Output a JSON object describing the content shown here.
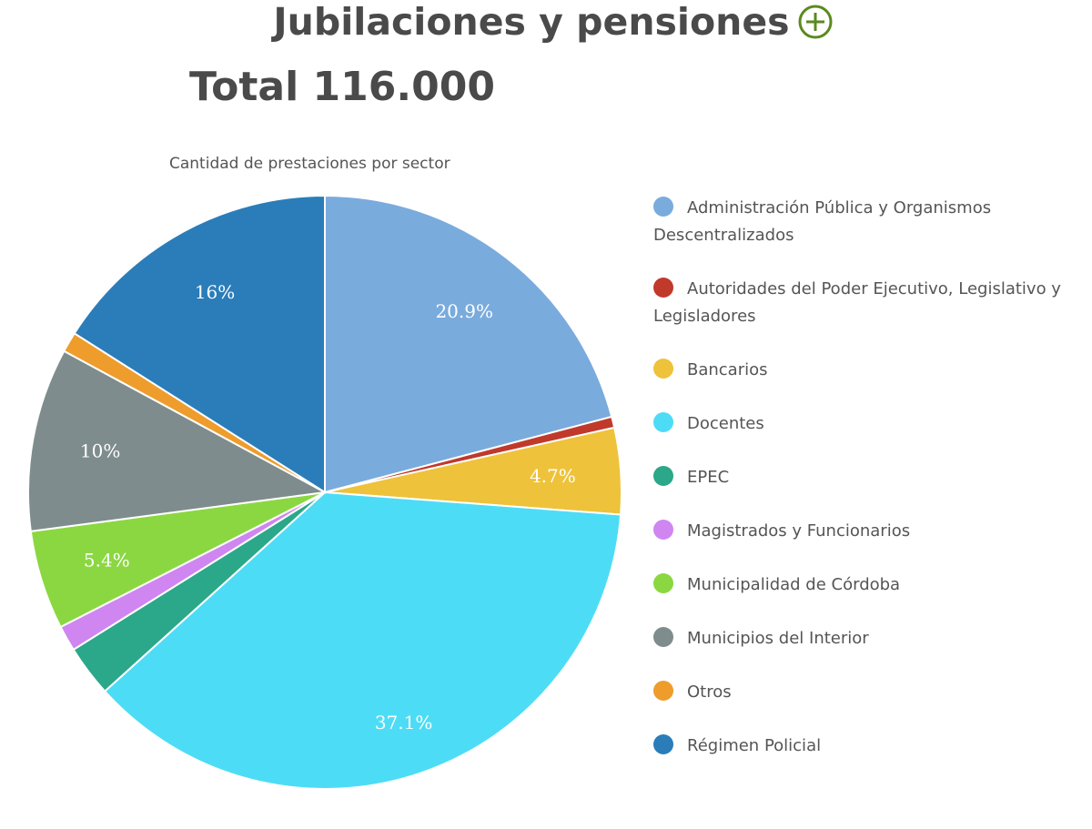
{
  "header": {
    "title": "Jubilaciones y pensiones",
    "expand_icon": "plus-circle-icon",
    "accent_color": "#5a8a1e"
  },
  "total": {
    "label": "Total 116.000"
  },
  "chart_data": {
    "type": "pie",
    "title": "Cantidad de prestaciones por sector",
    "unit": "%",
    "legend_position": "right",
    "slices": [
      {
        "name": "Administración Pública y Organismos Descentralizados",
        "value": 20.9,
        "color": "#7aabdd",
        "label": "20.9%"
      },
      {
        "name": "Autoridades del Poder Ejecutivo, Legislativo y Legisladores",
        "value": 0.6,
        "color": "#c0392b",
        "label": ""
      },
      {
        "name": "Bancarios",
        "value": 4.7,
        "color": "#eec23a",
        "label": "4.7%"
      },
      {
        "name": "Docentes",
        "value": 37.1,
        "color": "#4ddcf6",
        "label": "37.1%"
      },
      {
        "name": "EPEC",
        "value": 2.8,
        "color": "#2aa889",
        "label": ""
      },
      {
        "name": "Magistrados y Funcionarios",
        "value": 1.4,
        "color": "#cf86f0",
        "label": ""
      },
      {
        "name": "Municipalidad de Córdoba",
        "value": 5.4,
        "color": "#8bd742",
        "label": "5.4%"
      },
      {
        "name": "Municipios del Interior",
        "value": 10.0,
        "color": "#7f8c8d",
        "label": "10%"
      },
      {
        "name": "Otros",
        "value": 1.1,
        "color": "#ee9c2c",
        "label": ""
      },
      {
        "name": "Régimen Policial",
        "value": 16.0,
        "color": "#2a7db9",
        "label": "16%"
      }
    ]
  }
}
